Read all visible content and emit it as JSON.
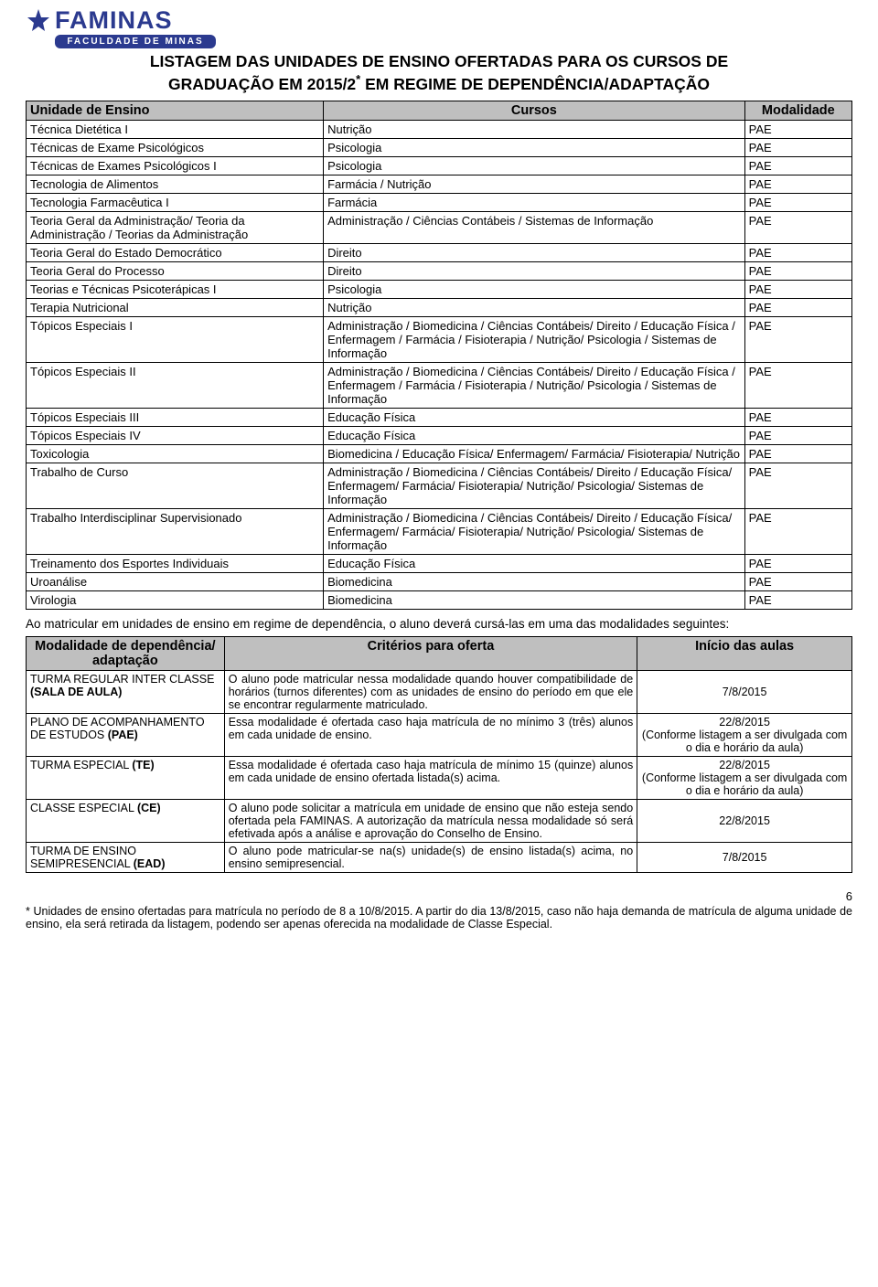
{
  "logo": {
    "name": "FAMINAS",
    "sub": "FACULDADE DE MINAS",
    "brand_color": "#2b3a8f"
  },
  "title_line1": "LISTAGEM DAS UNIDADES DE ENSINO OFERTADAS PARA OS CURSOS DE",
  "title_line2_a": "GRADUAÇÃO EM 2015/2",
  "title_line2_b": " EM REGIME DE DEPENDÊNCIA/ADAPTAÇÃO",
  "asterisk": "*",
  "table1": {
    "headers": [
      "Unidade de Ensino",
      "Cursos",
      "Modalidade"
    ],
    "header_bg": "#bfbfbf",
    "border_color": "#000000",
    "rows": [
      [
        "Técnica Dietética I",
        "Nutrição",
        "PAE"
      ],
      [
        "Técnicas de Exame Psicológicos",
        "Psicologia",
        "PAE"
      ],
      [
        "Técnicas de Exames Psicológicos I",
        "Psicologia",
        "PAE"
      ],
      [
        "Tecnologia de Alimentos",
        "Farmácia / Nutrição",
        "PAE"
      ],
      [
        "Tecnologia Farmacêutica I",
        "Farmácia",
        "PAE"
      ],
      [
        "Teoria Geral da Administração/ Teoria da Administração / Teorias da Administração",
        "Administração / Ciências Contábeis / Sistemas de Informação",
        "PAE"
      ],
      [
        "Teoria Geral do Estado Democrático",
        "Direito",
        "PAE"
      ],
      [
        "Teoria Geral do Processo",
        "Direito",
        "PAE"
      ],
      [
        "Teorias e Técnicas Psicoterápicas I",
        "Psicologia",
        "PAE"
      ],
      [
        "Terapia Nutricional",
        "Nutrição",
        "PAE"
      ],
      [
        "Tópicos Especiais I",
        "Administração / Biomedicina / Ciências Contábeis/ Direito / Educação Física / Enfermagem / Farmácia / Fisioterapia / Nutrição/ Psicologia / Sistemas de Informação",
        "PAE"
      ],
      [
        "Tópicos Especiais II",
        "Administração / Biomedicina / Ciências Contábeis/ Direito / Educação Física / Enfermagem / Farmácia / Fisioterapia / Nutrição/ Psicologia / Sistemas de Informação",
        "PAE"
      ],
      [
        "Tópicos Especiais III",
        "Educação Física",
        "PAE"
      ],
      [
        "Tópicos Especiais IV",
        "Educação Física",
        "PAE"
      ],
      [
        "Toxicologia",
        "Biomedicina / Educação Física/ Enfermagem/ Farmácia/ Fisioterapia/ Nutrição",
        "PAE"
      ],
      [
        "Trabalho de Curso",
        "Administração / Biomedicina / Ciências Contábeis/ Direito / Educação Física/ Enfermagem/ Farmácia/ Fisioterapia/ Nutrição/ Psicologia/ Sistemas de Informação",
        "PAE"
      ],
      [
        "Trabalho Interdisciplinar Supervisionado",
        "Administração / Biomedicina / Ciências Contábeis/ Direito / Educação Física/ Enfermagem/ Farmácia/ Fisioterapia/ Nutrição/ Psicologia/ Sistemas de Informação",
        "PAE"
      ],
      [
        "Treinamento dos Esportes Individuais",
        "Educação Física",
        "PAE"
      ],
      [
        "Uroanálise",
        "Biomedicina",
        "PAE"
      ],
      [
        "Virologia",
        "Biomedicina",
        "PAE"
      ]
    ]
  },
  "intro": "Ao matricular em unidades de ensino em regime de dependência, o aluno deverá cursá-las em uma das modalidades seguintes:",
  "table2": {
    "headers": [
      "Modalidade de dependência/ adaptação",
      "Critérios para oferta",
      "Início das aulas"
    ],
    "header_bg": "#bfbfbf",
    "rows": [
      {
        "c1_pre": "TURMA REGULAR INTER CLASSE ",
        "c1_bold": "(SALA DE AULA)",
        "c2": "O aluno pode matricular nessa modalidade quando houver compatibilidade de horários (turnos diferentes) com as unidades de ensino do período em que ele se encontrar regularmente matriculado.",
        "c3": "7/8/2015"
      },
      {
        "c1_pre": "PLANO DE ACOMPANHAMENTO DE ESTUDOS ",
        "c1_bold": "(PAE)",
        "c2": "Essa modalidade é ofertada caso haja matrícula de no mínimo 3 (três) alunos em cada unidade de ensino.",
        "c3": "22/8/2015\n(Conforme listagem a ser divulgada com o dia e horário da aula)"
      },
      {
        "c1_pre": "TURMA ESPECIAL ",
        "c1_bold": "(TE)",
        "c2": "Essa modalidade é ofertada caso haja matrícula de mínimo 15 (quinze) alunos em cada unidade de ensino ofertada listada(s) acima.",
        "c3": "22/8/2015\n(Conforme listagem a ser divulgada com o dia e horário da aula)"
      },
      {
        "c1_pre": "CLASSE ESPECIAL ",
        "c1_bold": "(CE)",
        "c2": "O aluno pode solicitar a matrícula em unidade de ensino que não esteja sendo ofertada pela FAMINAS. A autorização da matrícula nessa modalidade só será efetivada após a análise e aprovação do Conselho de Ensino.",
        "c3": "22/8/2015"
      },
      {
        "c1_pre": "TURMA DE ENSINO SEMIPRESENCIAL ",
        "c1_bold": "(EAD)",
        "c2": "O aluno pode matricular-se na(s) unidade(s) de ensino listada(s) acima, no ensino semipresencial.",
        "c3": "7/8/2015"
      }
    ]
  },
  "page_number": "6",
  "footnote": "* Unidades de ensino ofertadas para matrícula no período de 8 a 10/8/2015. A partir do dia 13/8/2015, caso não haja demanda de matrícula de alguma unidade de ensino, ela será retirada da listagem, podendo ser apenas oferecida na modalidade de Classe Especial."
}
